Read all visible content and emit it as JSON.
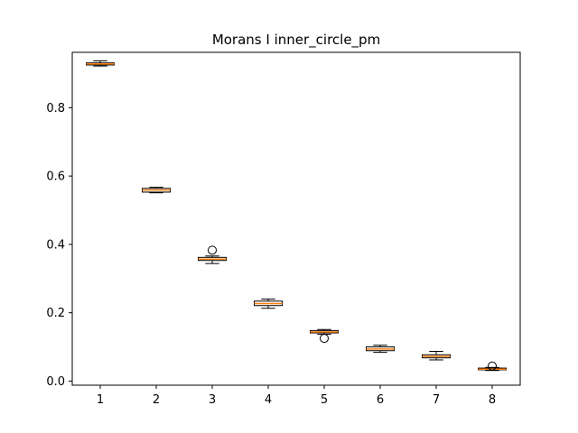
{
  "chart_data": {
    "type": "boxplot",
    "title": "Morans I inner_circle_pm",
    "xlabel": "",
    "ylabel": "",
    "categories": [
      "1",
      "2",
      "3",
      "4",
      "5",
      "6",
      "7",
      "8"
    ],
    "y_ticks": [
      "0.0",
      "0.2",
      "0.4",
      "0.6",
      "0.8"
    ],
    "ylim": [
      -0.012,
      0.962
    ],
    "grid": false,
    "boxes": [
      {
        "category": "1",
        "whisker_low": 0.922,
        "q1": 0.925,
        "median": 0.928,
        "q3": 0.931,
        "whisker_high": 0.937,
        "outliers": []
      },
      {
        "category": "2",
        "whisker_low": 0.551,
        "q1": 0.553,
        "median": 0.559,
        "q3": 0.564,
        "whisker_high": 0.567,
        "outliers": []
      },
      {
        "category": "3",
        "whisker_low": 0.344,
        "q1": 0.353,
        "median": 0.357,
        "q3": 0.362,
        "whisker_high": 0.366,
        "outliers": [
          0.383
        ]
      },
      {
        "category": "4",
        "whisker_low": 0.213,
        "q1": 0.221,
        "median": 0.227,
        "q3": 0.234,
        "whisker_high": 0.24,
        "outliers": []
      },
      {
        "category": "5",
        "whisker_low": 0.137,
        "q1": 0.141,
        "median": 0.144,
        "q3": 0.148,
        "whisker_high": 0.151,
        "outliers": [
          0.125
        ]
      },
      {
        "category": "6",
        "whisker_low": 0.084,
        "q1": 0.089,
        "median": 0.094,
        "q3": 0.1,
        "whisker_high": 0.105,
        "outliers": []
      },
      {
        "category": "7",
        "whisker_low": 0.062,
        "q1": 0.068,
        "median": 0.072,
        "q3": 0.077,
        "whisker_high": 0.087,
        "outliers": []
      },
      {
        "category": "8",
        "whisker_low": 0.031,
        "q1": 0.033,
        "median": 0.035,
        "q3": 0.038,
        "whisker_high": 0.04,
        "outliers": [
          0.044
        ]
      }
    ],
    "colors": {
      "box_edge": "#000000",
      "median": "#ff7f0e",
      "axes": "#000000",
      "background": "#ffffff"
    }
  }
}
